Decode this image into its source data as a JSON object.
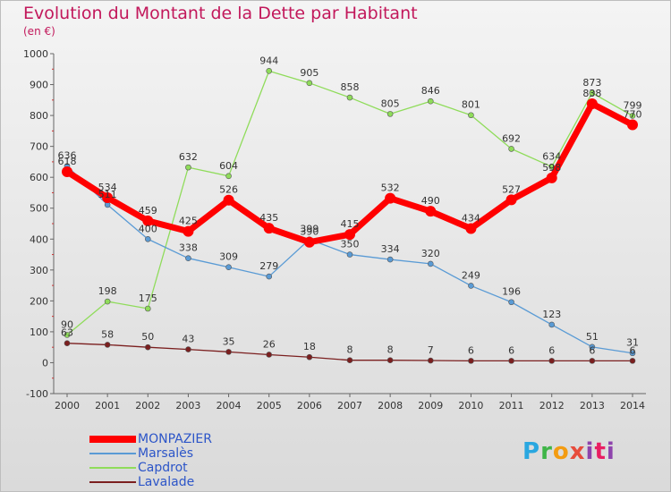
{
  "title": "Evolution du Montant de la Dette par Habitant",
  "subtitle": "(en €)",
  "logo": "Proxiti",
  "chart_data": {
    "type": "line",
    "x": [
      2000,
      2001,
      2002,
      2003,
      2004,
      2005,
      2006,
      2007,
      2008,
      2009,
      2010,
      2011,
      2012,
      2013,
      2014
    ],
    "ylim": [
      -100,
      1000
    ],
    "yticks": [
      -100,
      0,
      100,
      200,
      300,
      400,
      500,
      600,
      700,
      800,
      900,
      1000
    ],
    "grid": false,
    "legend_position": "bottom-left",
    "series": [
      {
        "name": "MONPAZIER",
        "color": "#ff0000",
        "values": [
          618,
          534,
          459,
          425,
          526,
          435,
          390,
          415,
          532,
          490,
          434,
          527,
          598,
          838,
          770
        ],
        "labels": [
          "618",
          "534",
          "459",
          "425",
          "526",
          "435",
          "390",
          "415",
          "532",
          "490",
          "434",
          "527",
          "598",
          "838",
          "770"
        ]
      },
      {
        "name": "Marsalès",
        "color": "#5a9bd5",
        "values": [
          636,
          511,
          400,
          338,
          309,
          279,
          399,
          350,
          334,
          320,
          249,
          196,
          123,
          51,
          31
        ],
        "labels": [
          "636",
          "511",
          "400",
          "338",
          "309",
          "279",
          "399",
          "350",
          "334",
          "320",
          "249",
          "196",
          "123",
          "51",
          "31"
        ]
      },
      {
        "name": "Capdrot",
        "color": "#8fdc5a",
        "values": [
          90,
          198,
          175,
          632,
          604,
          944,
          905,
          858,
          805,
          846,
          801,
          692,
          634,
          873,
          799
        ],
        "labels": [
          "90",
          "198",
          "175",
          "632",
          "604",
          "944",
          "905",
          "858",
          "805",
          "846",
          "801",
          "692",
          "634",
          "873",
          "799"
        ]
      },
      {
        "name": "Lavalade",
        "color": "#7b1f1f",
        "values": [
          63,
          58,
          50,
          43,
          35,
          26,
          18,
          8,
          8,
          7,
          6,
          6,
          6,
          6,
          6
        ],
        "labels": [
          "63",
          "58",
          "50",
          "43",
          "35",
          "26",
          "18",
          "8",
          "8",
          "7",
          "6",
          "6",
          "6",
          "6",
          "6"
        ]
      }
    ]
  }
}
